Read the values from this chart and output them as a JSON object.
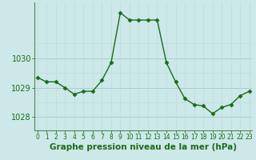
{
  "x": [
    0,
    1,
    2,
    3,
    4,
    5,
    6,
    7,
    8,
    9,
    10,
    11,
    12,
    13,
    14,
    15,
    16,
    17,
    18,
    19,
    20,
    21,
    22,
    23
  ],
  "y": [
    1029.35,
    1029.2,
    1029.2,
    1029.0,
    1028.78,
    1028.88,
    1028.88,
    1029.25,
    1029.85,
    1031.55,
    1031.3,
    1031.3,
    1031.3,
    1031.3,
    1029.85,
    1029.2,
    1028.63,
    1028.43,
    1028.38,
    1028.12,
    1028.33,
    1028.43,
    1028.73,
    1028.88
  ],
  "line_color": "#1a6b1a",
  "marker": "D",
  "marker_size": 2.5,
  "bg_color": "#cce8e8",
  "grid_color_major": "#aacccc",
  "grid_color_minor": "#bbdddd",
  "xlabel": "Graphe pression niveau de la mer (hPa)",
  "xlabel_fontsize": 7.5,
  "xtick_labels": [
    "0",
    "1",
    "2",
    "3",
    "4",
    "5",
    "6",
    "7",
    "8",
    "9",
    "10",
    "11",
    "12",
    "13",
    "14",
    "15",
    "16",
    "17",
    "18",
    "19",
    "20",
    "21",
    "22",
    "23"
  ],
  "ytick_values": [
    1028,
    1029,
    1030
  ],
  "ylim": [
    1027.55,
    1031.9
  ],
  "xlim": [
    -0.3,
    23.3
  ],
  "tick_fontsize": 7,
  "label_color": "#1a6b1a",
  "spine_color": "#558855"
}
